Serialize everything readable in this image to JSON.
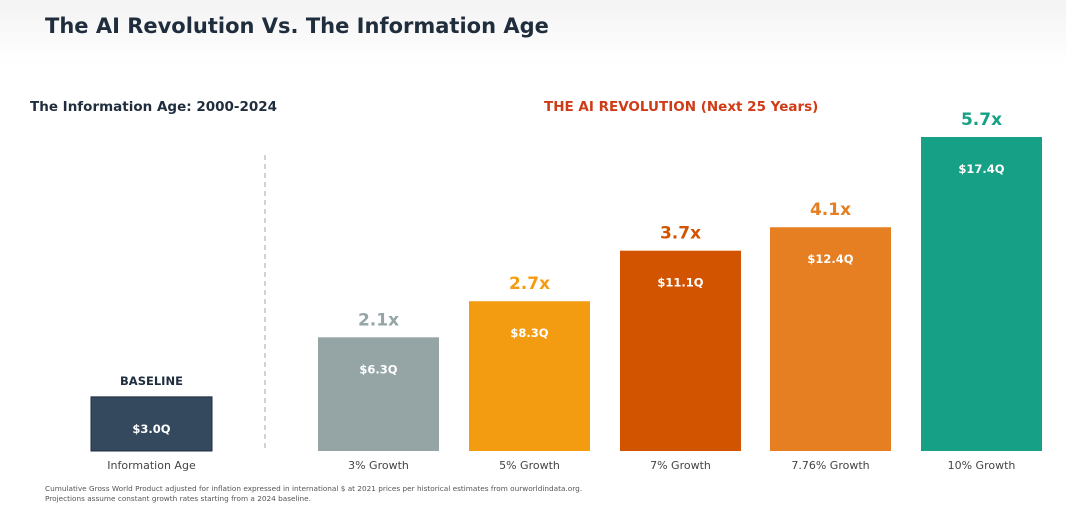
{
  "title": "The AI Revolution Vs. The Information Age",
  "sections": {
    "left": "The Information Age: 2000-2024",
    "right": "THE AI REVOLUTION (Next 25 Years)"
  },
  "chart_data": {
    "type": "bar",
    "title": "The AI Revolution Vs. The Information Age",
    "xlabel": "",
    "ylabel": "",
    "ylim": [
      0,
      17.4
    ],
    "grid": false,
    "categories": [
      "Information Age",
      "3% Growth",
      "5% Growth",
      "7% Growth",
      "7.76% Growth",
      "10% Growth"
    ],
    "values": [
      3.0,
      6.3,
      8.3,
      11.1,
      12.4,
      17.4
    ],
    "value_labels": [
      "$3.0Q",
      "$6.3Q",
      "$8.3Q",
      "$11.1Q",
      "$12.4Q",
      "$17.4Q"
    ],
    "top_labels": [
      "BASELINE",
      "2.1x",
      "2.7x",
      "3.7x",
      "4.1x",
      "5.7x"
    ],
    "colors": [
      "#34495e",
      "#95a5a6",
      "#f39c12",
      "#d35400",
      "#e67e22",
      "#16a085"
    ],
    "label_colors": [
      "#1f2d3d",
      "#95a5a6",
      "#f39c12",
      "#d35400",
      "#e67e22",
      "#16a085"
    ]
  },
  "footnotes": [
    "Cumulative Gross World Product adjusted for inflation expressed in international $ at 2021 prices per historical estimates from ourworldindata.org.",
    "Projections assume constant growth rates starting from a 2024 baseline."
  ]
}
